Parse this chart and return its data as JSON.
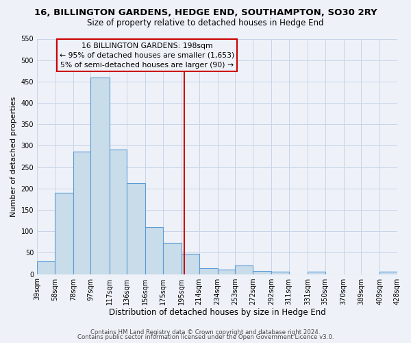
{
  "title": "16, BILLINGTON GARDENS, HEDGE END, SOUTHAMPTON, SO30 2RY",
  "subtitle": "Size of property relative to detached houses in Hedge End",
  "xlabel": "Distribution of detached houses by size in Hedge End",
  "ylabel": "Number of detached properties",
  "bin_edges": [
    39,
    58,
    78,
    97,
    117,
    136,
    156,
    175,
    195,
    214,
    234,
    253,
    272,
    292,
    311,
    331,
    350,
    370,
    389,
    409,
    428
  ],
  "bin_labels": [
    "39sqm",
    "58sqm",
    "78sqm",
    "97sqm",
    "117sqm",
    "136sqm",
    "156sqm",
    "175sqm",
    "195sqm",
    "214sqm",
    "234sqm",
    "253sqm",
    "272sqm",
    "292sqm",
    "311sqm",
    "331sqm",
    "350sqm",
    "370sqm",
    "389sqm",
    "409sqm",
    "428sqm"
  ],
  "counts": [
    30,
    190,
    287,
    459,
    291,
    213,
    110,
    73,
    47,
    13,
    10,
    20,
    8,
    5,
    0,
    5,
    0,
    0,
    0,
    5
  ],
  "bar_facecolor": "#c9dcea",
  "bar_edgecolor": "#5b9bd5",
  "property_line_x": 198,
  "property_line_color": "#cc0000",
  "annotation_line1": "16 BILLINGTON GARDENS: 198sqm",
  "annotation_line2": "← 95% of detached houses are smaller (1,653)",
  "annotation_line3": "5% of semi-detached houses are larger (90) →",
  "annotation_box_edgecolor": "#cc0000",
  "ylim": [
    0,
    550
  ],
  "yticks": [
    0,
    50,
    100,
    150,
    200,
    250,
    300,
    350,
    400,
    450,
    500,
    550
  ],
  "grid_color": "#c8d4e8",
  "background_color": "#eef2f8",
  "plot_bg_color": "#eef2f8",
  "footer_line1": "Contains HM Land Registry data © Crown copyright and database right 2024.",
  "footer_line2": "Contains public sector information licensed under the Open Government Licence v3.0."
}
